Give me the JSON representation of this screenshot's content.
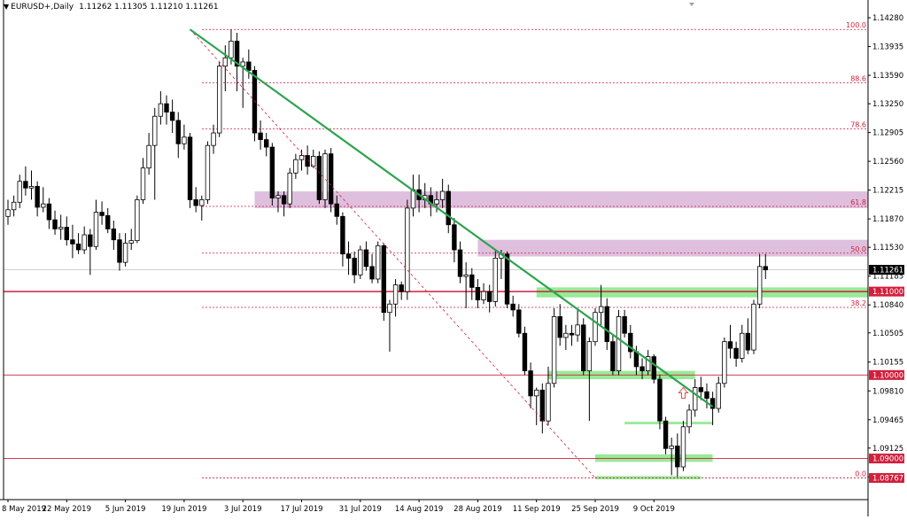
{
  "header": {
    "symbol": "EURUSD+,Daily",
    "ohlc": "1.11262 1.11305 1.11210 1.11261"
  },
  "colors": {
    "bull": "#ffffff",
    "bear": "#000000",
    "trendline": "#2da44e",
    "fib": "#d21f3c",
    "level": "#d21f3c",
    "resistance_zone": "#d8b5d8",
    "support_zone": "#8de88d"
  },
  "chart_data": {
    "type": "candlestick",
    "symbol": "EURUSD+",
    "timeframe": "Daily",
    "ylim": [
      1.0855,
      1.1445
    ],
    "y_ticks": [
      "1.14280",
      "1.13935",
      "1.13590",
      "1.13250",
      "1.12905",
      "1.12560",
      "1.12215",
      "1.11870",
      "1.11530",
      "1.11185",
      "1.10840",
      "1.10505",
      "1.10155",
      "1.09810",
      "1.09465",
      "1.09125",
      "1.08780"
    ],
    "x_labels": [
      "8 May 2019",
      "22 May 2019",
      "5 Jun 2019",
      "19 Jun 2019",
      "3 Jul 2019",
      "17 Jul 2019",
      "31 Jul 2019",
      "14 Aug 2019",
      "28 Aug 2019",
      "11 Sep 2019",
      "25 Sep 2019",
      "9 Oct 2019"
    ],
    "price_badges": [
      {
        "label": "1.11261",
        "value": 1.11261,
        "style": "current"
      },
      {
        "label": "1.11000",
        "value": 1.11,
        "style": "level"
      },
      {
        "label": "1.10000",
        "value": 1.1,
        "style": "level"
      },
      {
        "label": "1.09000",
        "value": 1.09,
        "style": "level"
      },
      {
        "label": "1.08767",
        "value": 1.08767,
        "style": "level"
      }
    ],
    "fibonacci": {
      "levels": [
        {
          "label": "100.0",
          "price": 1.1414
        },
        {
          "label": "88.6",
          "price": 1.135
        },
        {
          "label": "78.6",
          "price": 1.1295
        },
        {
          "label": "61.8",
          "price": 1.1202
        },
        {
          "label": "50.0",
          "price": 1.1146
        },
        {
          "label": "38.2",
          "price": 1.1081
        },
        {
          "label": "0.0",
          "price": 1.08767
        }
      ]
    },
    "horizontal_levels": [
      1.11,
      1.1,
      1.09
    ],
    "trendline": {
      "from": [
        "20 Jun 2019",
        1.1414
      ],
      "to": [
        "23 Oct 2019",
        1.0962
      ]
    },
    "fib_diagonal": {
      "from": [
        "20 Jun 2019",
        1.1414
      ],
      "to": [
        "25 Sep 2019",
        1.08767
      ]
    },
    "resistance_zones": [
      {
        "from": "5 Jul 2019",
        "to": "end",
        "low": 1.12,
        "high": 1.122
      },
      {
        "from": "26 Aug 2019",
        "to": "end",
        "low": 1.1142,
        "high": 1.1162
      }
    ],
    "support_zones": [
      {
        "from": "11 Sep 2019",
        "to": "end",
        "low": 1.1093,
        "high": 1.1105
      },
      {
        "from": "13 Sep 2019",
        "to": "18 Oct 2019",
        "low": 1.0995,
        "high": 1.1005
      },
      {
        "from": "30 Sep 2019",
        "to": "22 Oct 2019",
        "low": 1.0941,
        "high": 1.0944
      },
      {
        "from": "24 Sep 2019",
        "to": "22 Oct 2019",
        "low": 1.0896,
        "high": 1.0905
      },
      {
        "from": "25 Sep 2019",
        "to": "19 Oct 2019",
        "low": 1.0875,
        "high": 1.0879
      }
    ],
    "arrow": {
      "date": "14 Oct 2019",
      "price": 1.0985
    },
    "candles": [
      [
        1.119,
        1.121,
        1.118,
        1.1198
      ],
      [
        1.1198,
        1.1215,
        1.119,
        1.1207
      ],
      [
        1.1207,
        1.124,
        1.12,
        1.1232
      ],
      [
        1.1232,
        1.125,
        1.1215,
        1.1224
      ],
      [
        1.1224,
        1.1245,
        1.121,
        1.1226
      ],
      [
        1.1226,
        1.1232,
        1.119,
        1.1201
      ],
      [
        1.1201,
        1.1225,
        1.1195,
        1.1205
      ],
      [
        1.1205,
        1.1212,
        1.1175,
        1.1186
      ],
      [
        1.1186,
        1.1197,
        1.1168,
        1.1175
      ],
      [
        1.1175,
        1.1192,
        1.1162,
        1.1177
      ],
      [
        1.1177,
        1.119,
        1.1155,
        1.1162
      ],
      [
        1.1162,
        1.118,
        1.114,
        1.1157
      ],
      [
        1.1157,
        1.117,
        1.1145,
        1.115
      ],
      [
        1.115,
        1.1178,
        1.1145,
        1.1168
      ],
      [
        1.1168,
        1.1175,
        1.112,
        1.1154
      ],
      [
        1.1154,
        1.121,
        1.115,
        1.1195
      ],
      [
        1.1195,
        1.1208,
        1.118,
        1.1191
      ],
      [
        1.1191,
        1.12,
        1.117,
        1.1175
      ],
      [
        1.1175,
        1.1185,
        1.115,
        1.1162
      ],
      [
        1.1162,
        1.117,
        1.1125,
        1.1135
      ],
      [
        1.1135,
        1.117,
        1.113,
        1.1158
      ],
      [
        1.1158,
        1.1175,
        1.115,
        1.1161
      ],
      [
        1.1161,
        1.1215,
        1.1158,
        1.121
      ],
      [
        1.121,
        1.126,
        1.1205,
        1.1248
      ],
      [
        1.1248,
        1.129,
        1.124,
        1.1275
      ],
      [
        1.1275,
        1.132,
        1.121,
        1.131
      ],
      [
        1.131,
        1.134,
        1.13,
        1.1325
      ],
      [
        1.1325,
        1.1335,
        1.13,
        1.1315
      ],
      [
        1.1315,
        1.133,
        1.129,
        1.1305
      ],
      [
        1.1305,
        1.1315,
        1.126,
        1.1277
      ],
      [
        1.1277,
        1.13,
        1.127,
        1.1285
      ],
      [
        1.1285,
        1.129,
        1.12,
        1.121
      ],
      [
        1.121,
        1.1225,
        1.1195,
        1.1203
      ],
      [
        1.1203,
        1.1215,
        1.1185,
        1.121
      ],
      [
        1.121,
        1.128,
        1.1205,
        1.1275
      ],
      [
        1.1275,
        1.13,
        1.1265,
        1.129
      ],
      [
        1.129,
        1.1375,
        1.1285,
        1.137
      ],
      [
        1.137,
        1.1395,
        1.134,
        1.138
      ],
      [
        1.138,
        1.1414,
        1.1372,
        1.14
      ],
      [
        1.14,
        1.141,
        1.134,
        1.137
      ],
      [
        1.137,
        1.138,
        1.132,
        1.1375
      ],
      [
        1.1375,
        1.139,
        1.1355,
        1.1365
      ],
      [
        1.1365,
        1.137,
        1.128,
        1.129
      ],
      [
        1.129,
        1.1305,
        1.127,
        1.1282
      ],
      [
        1.1282,
        1.129,
        1.1262,
        1.1273
      ],
      [
        1.1273,
        1.1278,
        1.1203,
        1.1212
      ],
      [
        1.1212,
        1.122,
        1.1195,
        1.1215
      ],
      [
        1.1215,
        1.122,
        1.119,
        1.1205
      ],
      [
        1.1205,
        1.1248,
        1.12,
        1.1242
      ],
      [
        1.1242,
        1.1265,
        1.1235,
        1.1258
      ],
      [
        1.1258,
        1.127,
        1.1245,
        1.1263
      ],
      [
        1.1263,
        1.1275,
        1.124,
        1.125
      ],
      [
        1.125,
        1.127,
        1.1248,
        1.1262
      ],
      [
        1.1262,
        1.1268,
        1.1205,
        1.121
      ],
      [
        1.121,
        1.127,
        1.12,
        1.1265
      ],
      [
        1.1265,
        1.1272,
        1.1195,
        1.1205
      ],
      [
        1.1205,
        1.1215,
        1.118,
        1.119
      ],
      [
        1.119,
        1.1195,
        1.113,
        1.1145
      ],
      [
        1.1145,
        1.116,
        1.112,
        1.114
      ],
      [
        1.114,
        1.1148,
        1.111,
        1.112
      ],
      [
        1.112,
        1.1155,
        1.1115,
        1.115
      ],
      [
        1.115,
        1.116,
        1.1125,
        1.113
      ],
      [
        1.113,
        1.1145,
        1.111,
        1.1115
      ],
      [
        1.1115,
        1.116,
        1.111,
        1.1155
      ],
      [
        1.1155,
        1.1158,
        1.1065,
        1.1075
      ],
      [
        1.1075,
        1.109,
        1.1028,
        1.1085
      ],
      [
        1.1085,
        1.1115,
        1.107,
        1.1108
      ],
      [
        1.1108,
        1.1112,
        1.109,
        1.11
      ],
      [
        1.11,
        1.121,
        1.109,
        1.12
      ],
      [
        1.12,
        1.124,
        1.119,
        1.1222
      ],
      [
        1.1222,
        1.124,
        1.1195,
        1.121
      ],
      [
        1.121,
        1.123,
        1.12,
        1.1215
      ],
      [
        1.1215,
        1.1225,
        1.119,
        1.1205
      ],
      [
        1.1205,
        1.122,
        1.1195,
        1.121
      ],
      [
        1.121,
        1.1235,
        1.12,
        1.122
      ],
      [
        1.122,
        1.1228,
        1.117,
        1.118
      ],
      [
        1.118,
        1.1188,
        1.1135,
        1.115
      ],
      [
        1.115,
        1.116,
        1.111,
        1.1118
      ],
      [
        1.1118,
        1.1135,
        1.108,
        1.112
      ],
      [
        1.112,
        1.1128,
        1.109,
        1.1105
      ],
      [
        1.1105,
        1.1115,
        1.108,
        1.109
      ],
      [
        1.109,
        1.111,
        1.1085,
        1.11
      ],
      [
        1.11,
        1.1108,
        1.1075,
        1.1088
      ],
      [
        1.1088,
        1.115,
        1.1082,
        1.114
      ],
      [
        1.114,
        1.115,
        1.1115,
        1.1145
      ],
      [
        1.1145,
        1.1148,
        1.108,
        1.1085
      ],
      [
        1.1085,
        1.1095,
        1.107,
        1.1078
      ],
      [
        1.1078,
        1.1085,
        1.1045,
        1.105
      ],
      [
        1.105,
        1.1058,
        1.1,
        1.1005
      ],
      [
        1.1005,
        1.1015,
        1.096,
        1.0975
      ],
      [
        1.0975,
        1.0985,
        1.094,
        1.0982
      ],
      [
        1.0982,
        1.099,
        1.093,
        1.0945
      ],
      [
        1.0945,
        1.101,
        1.094,
        1.099
      ],
      [
        1.099,
        1.108,
        1.0985,
        1.107
      ],
      [
        1.107,
        1.1085,
        1.1035,
        1.1045
      ],
      [
        1.1045,
        1.106,
        1.103,
        1.105
      ],
      [
        1.105,
        1.106,
        1.1035,
        1.1048
      ],
      [
        1.1048,
        1.108,
        1.104,
        1.106
      ],
      [
        1.106,
        1.1068,
        1.1,
        1.1005
      ],
      [
        1.1005,
        1.1045,
        1.0945,
        1.104
      ],
      [
        1.104,
        1.108,
        1.1035,
        1.1075
      ],
      [
        1.1075,
        1.1108,
        1.106,
        1.1082
      ],
      [
        1.1082,
        1.1092,
        1.103,
        1.104
      ],
      [
        1.104,
        1.1048,
        1.1,
        1.1005
      ],
      [
        1.1005,
        1.1078,
        1.1,
        1.107
      ],
      [
        1.107,
        1.1078,
        1.1045,
        1.105
      ],
      [
        1.105,
        1.106,
        1.102,
        1.1028
      ],
      [
        1.1028,
        1.1035,
        1.1,
        1.101
      ],
      [
        1.101,
        1.102,
        1.0995,
        1.1005
      ],
      [
        1.1005,
        1.103,
        1.1,
        1.1022
      ],
      [
        1.1022,
        1.1025,
        1.099,
        1.0995
      ],
      [
        1.0995,
        1.1,
        1.0935,
        1.0945
      ],
      [
        1.0945,
        1.095,
        1.0905,
        1.0912
      ],
      [
        1.0912,
        1.0925,
        1.088,
        1.0915
      ],
      [
        1.0915,
        1.093,
        1.0878,
        1.089
      ],
      [
        1.089,
        1.0945,
        1.0885,
        1.0938
      ],
      [
        1.0938,
        1.0965,
        1.093,
        1.0958
      ],
      [
        1.0958,
        1.0995,
        1.095,
        1.0985
      ],
      [
        1.0985,
        1.0998,
        1.097,
        1.098
      ],
      [
        1.098,
        1.099,
        1.096,
        1.0972
      ],
      [
        1.0972,
        1.098,
        1.094,
        1.096
      ],
      [
        1.096,
        1.0998,
        1.0955,
        1.099
      ],
      [
        1.099,
        1.1045,
        1.0985,
        1.104
      ],
      [
        1.104,
        1.106,
        1.102,
        1.1032
      ],
      [
        1.1032,
        1.104,
        1.101,
        1.102
      ],
      [
        1.102,
        1.106,
        1.1015,
        1.105
      ],
      [
        1.105,
        1.1068,
        1.1025,
        1.103
      ],
      [
        1.103,
        1.109,
        1.1025,
        1.1085
      ],
      [
        1.1085,
        1.1145,
        1.108,
        1.113
      ],
      [
        1.113,
        1.1145,
        1.1115,
        1.1126
      ]
    ]
  }
}
